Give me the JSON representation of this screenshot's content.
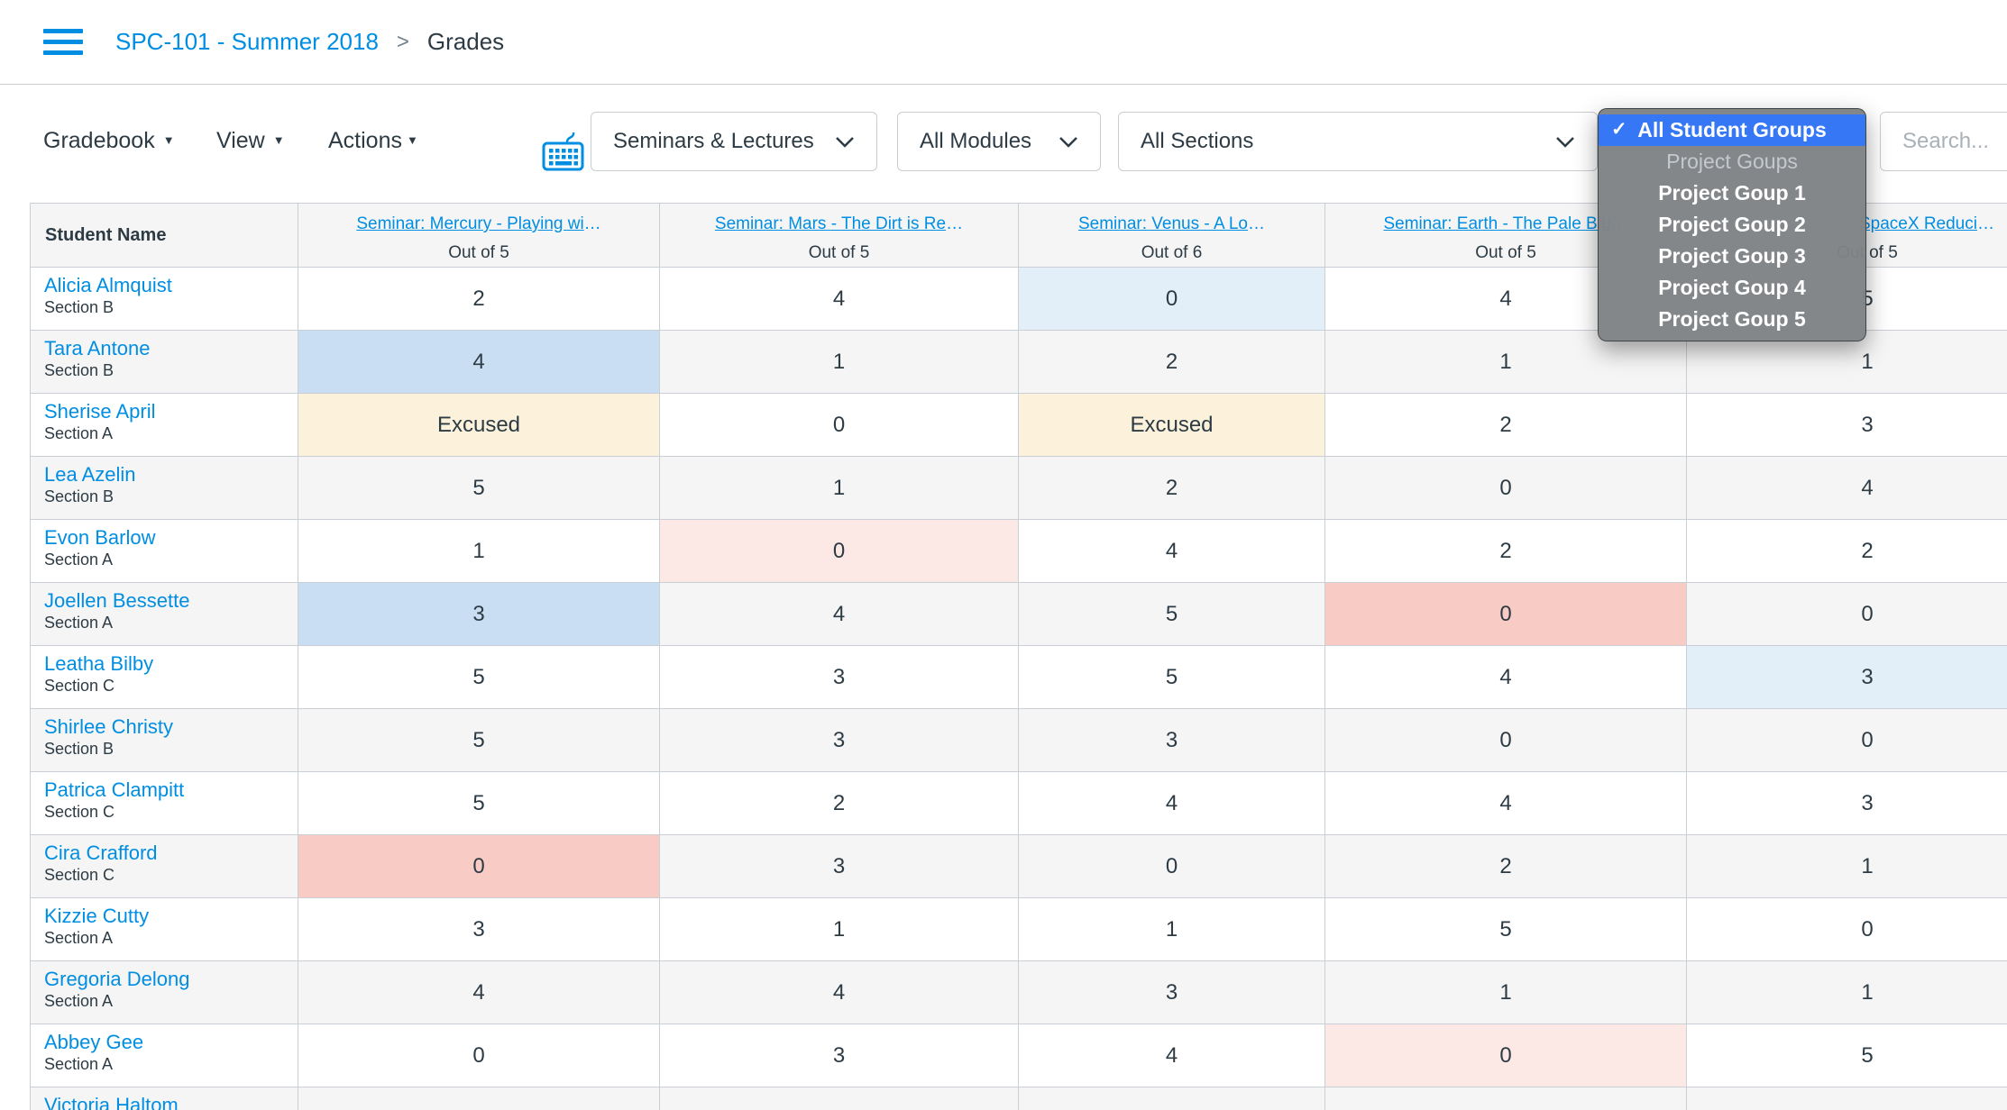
{
  "header": {
    "course": "SPC-101 - Summer 2018",
    "separator": ">",
    "page": "Grades"
  },
  "toolbar": {
    "caret": "▼",
    "menus": [
      {
        "label": "Gradebook"
      },
      {
        "label": "View"
      },
      {
        "label": "Actions"
      }
    ],
    "filters": [
      {
        "value": "Seminars & Lectures"
      },
      {
        "value": "All Modules"
      },
      {
        "value": "All Sections"
      }
    ],
    "search_placeholder": "Search..."
  },
  "student_groups_menu": {
    "checkmark": "✓",
    "items": [
      {
        "label": "All Student Groups",
        "state": "selected"
      },
      {
        "label": "Project Goups",
        "state": "group"
      },
      {
        "label": "Project Goup 1"
      },
      {
        "label": "Project Goup 2"
      },
      {
        "label": "Project Goup 3"
      },
      {
        "label": "Project Goup 4"
      },
      {
        "label": "Project Goup 5"
      }
    ]
  },
  "table": {
    "student_col_header": "Student Name",
    "columns": [
      {
        "title": "Seminar: Mercury - Playing wi…",
        "out_of": "Out of 5"
      },
      {
        "title": "Seminar: Mars - The Dirt is Re…",
        "out_of": "Out of 5"
      },
      {
        "title": "Seminar: Venus - A Lo…",
        "out_of": "Out of 6"
      },
      {
        "title": "Seminar: Earth - The Pale Blu…",
        "out_of": "Out of 5"
      },
      {
        "title": "SpaceX Reduci…",
        "out_of": "Out of 5"
      }
    ],
    "rows": [
      {
        "name": "Alicia Almquist",
        "section": "Section B",
        "grades": [
          {
            "v": "2"
          },
          {
            "v": "4"
          },
          {
            "v": "0",
            "hl": "lightblue"
          },
          {
            "v": "4"
          },
          {
            "v": "5"
          }
        ]
      },
      {
        "name": "Tara Antone",
        "section": "Section B",
        "grades": [
          {
            "v": "4",
            "hl": "blue"
          },
          {
            "v": "1"
          },
          {
            "v": "2"
          },
          {
            "v": "1"
          },
          {
            "v": "1"
          }
        ]
      },
      {
        "name": "Sherise April",
        "section": "Section A",
        "grades": [
          {
            "v": "Excused",
            "hl": "yellow"
          },
          {
            "v": "0"
          },
          {
            "v": "Excused",
            "hl": "yellow"
          },
          {
            "v": "2"
          },
          {
            "v": "3"
          }
        ]
      },
      {
        "name": "Lea Azelin",
        "section": "Section B",
        "grades": [
          {
            "v": "5"
          },
          {
            "v": "1"
          },
          {
            "v": "2"
          },
          {
            "v": "0"
          },
          {
            "v": "4"
          }
        ]
      },
      {
        "name": "Evon Barlow",
        "section": "Section A",
        "grades": [
          {
            "v": "1"
          },
          {
            "v": "0",
            "hl": "lightpink"
          },
          {
            "v": "4"
          },
          {
            "v": "2"
          },
          {
            "v": "2"
          }
        ]
      },
      {
        "name": "Joellen Bessette",
        "section": "Section A",
        "grades": [
          {
            "v": "3",
            "hl": "blue"
          },
          {
            "v": "4"
          },
          {
            "v": "5"
          },
          {
            "v": "0",
            "hl": "pink"
          },
          {
            "v": "0"
          }
        ]
      },
      {
        "name": "Leatha Bilby",
        "section": "Section C",
        "grades": [
          {
            "v": "5"
          },
          {
            "v": "3"
          },
          {
            "v": "5"
          },
          {
            "v": "4"
          },
          {
            "v": "3",
            "hl": "lightblue"
          }
        ]
      },
      {
        "name": "Shirlee Christy",
        "section": "Section B",
        "grades": [
          {
            "v": "5"
          },
          {
            "v": "3"
          },
          {
            "v": "3"
          },
          {
            "v": "0"
          },
          {
            "v": "0"
          }
        ]
      },
      {
        "name": "Patrica Clampitt",
        "section": "Section C",
        "grades": [
          {
            "v": "5"
          },
          {
            "v": "2"
          },
          {
            "v": "4"
          },
          {
            "v": "4"
          },
          {
            "v": "3"
          }
        ]
      },
      {
        "name": "Cira Crafford",
        "section": "Section C",
        "grades": [
          {
            "v": "0",
            "hl": "pink"
          },
          {
            "v": "3"
          },
          {
            "v": "0"
          },
          {
            "v": "2"
          },
          {
            "v": "1"
          }
        ]
      },
      {
        "name": "Kizzie Cutty",
        "section": "Section A",
        "grades": [
          {
            "v": "3"
          },
          {
            "v": "1"
          },
          {
            "v": "1"
          },
          {
            "v": "5"
          },
          {
            "v": "0"
          }
        ]
      },
      {
        "name": "Gregoria Delong",
        "section": "Section A",
        "grades": [
          {
            "v": "4"
          },
          {
            "v": "4"
          },
          {
            "v": "3"
          },
          {
            "v": "1"
          },
          {
            "v": "1"
          }
        ]
      },
      {
        "name": "Abbey Gee",
        "section": "Section A",
        "grades": [
          {
            "v": "0"
          },
          {
            "v": "3"
          },
          {
            "v": "4"
          },
          {
            "v": "0",
            "hl": "lightpink"
          },
          {
            "v": "5"
          }
        ]
      },
      {
        "name": "Victoria Haltom",
        "section": "",
        "grades": [
          {
            "v": ""
          },
          {
            "v": ""
          },
          {
            "v": ""
          },
          {
            "v": ""
          },
          {
            "v": ""
          }
        ]
      }
    ]
  },
  "colors": {
    "link_blue": "#008EE2",
    "ink": "#2D3B45",
    "border": "#C7CDD1",
    "alt_row": "#F5F5F5",
    "menu_selection_blue": "#3577F5",
    "highlights": {
      "blue": "#C9DEF2",
      "lightblue": "#E2EFF9",
      "yellow": "#FCF2DB",
      "pink": "#F9CBC5",
      "lightpink": "#FCE9E6"
    }
  }
}
